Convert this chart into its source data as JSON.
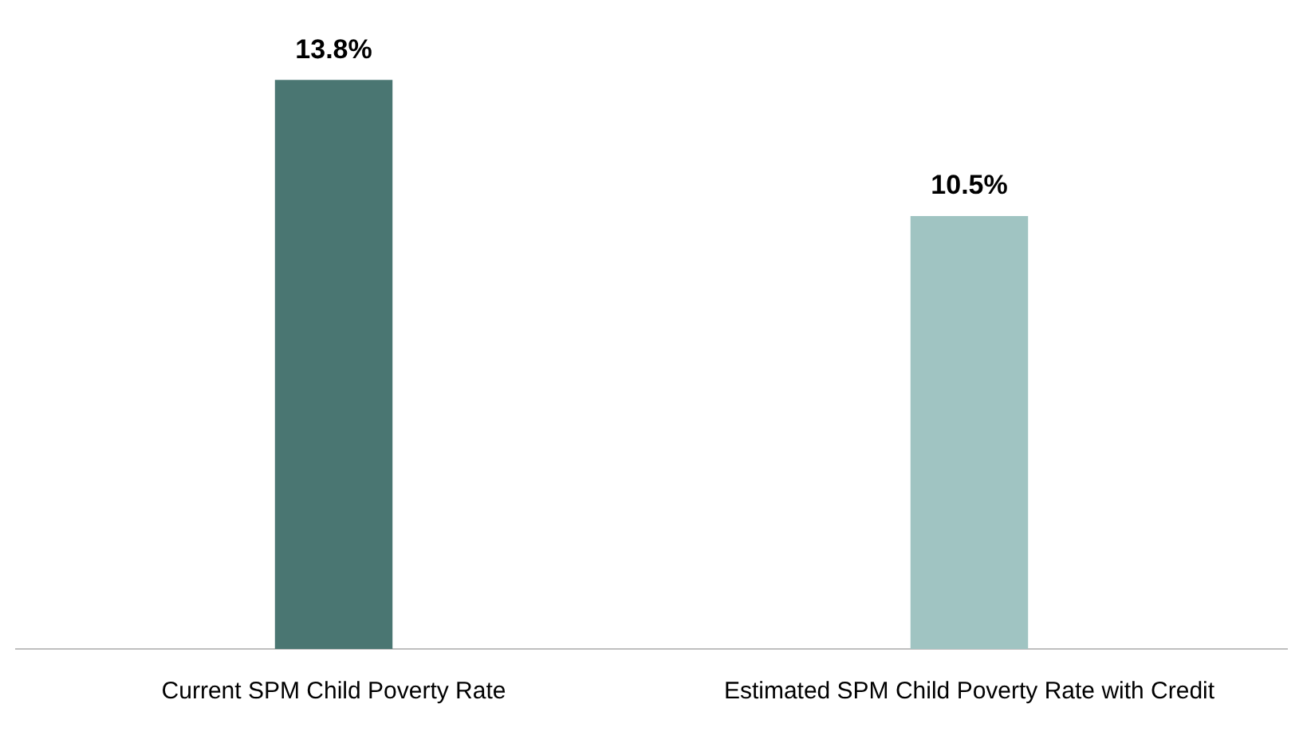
{
  "chart_data": {
    "type": "bar",
    "categories": [
      "Current SPM Child Poverty Rate",
      "Estimated SPM Child Poverty Rate with Credit"
    ],
    "values": [
      13.8,
      10.5
    ],
    "colors": [
      "#4a7672",
      "#a0c4c2"
    ],
    "value_labels": [
      "13.8%",
      "10.5%"
    ],
    "tick_labels": "x",
    "grid": false,
    "legend": false
  }
}
